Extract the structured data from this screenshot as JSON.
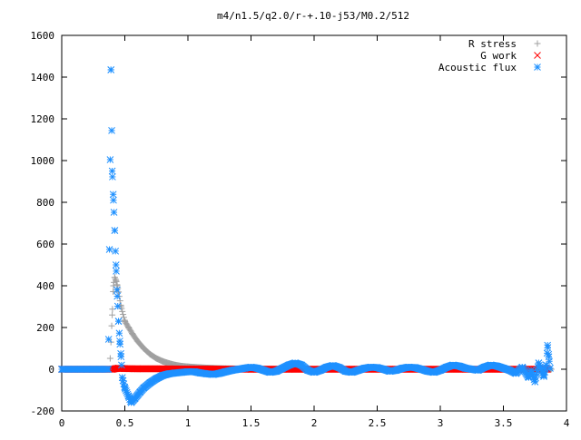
{
  "chart_data": {
    "type": "scatter",
    "title": "m4/n1.5/q2.0/r-+.10-j53/M0.2/512",
    "xlabel": "",
    "ylabel": "",
    "xlim": [
      0,
      4
    ],
    "ylim": [
      -200,
      1600
    ],
    "x_ticks": [
      0,
      0.5,
      1,
      1.5,
      2,
      2.5,
      3,
      3.5,
      4
    ],
    "x_tick_labels": [
      "0",
      "0.5",
      "1",
      "1.5",
      "2",
      "2.5",
      "3",
      "3.5",
      "4"
    ],
    "y_ticks": [
      -200,
      0,
      200,
      400,
      600,
      800,
      1000,
      1200,
      1400,
      1600
    ],
    "y_tick_labels": [
      "-200",
      "0",
      "200",
      "400",
      "600",
      "800",
      "1000",
      "1200",
      "1400",
      "1600"
    ],
    "grid": false,
    "legend_position": "top-right",
    "series": [
      {
        "name": "R stress",
        "marker": "plus",
        "color": "#a0a0a0",
        "x": [
          0.0,
          0.1,
          0.2,
          0.3,
          0.35,
          0.38,
          0.4,
          0.41,
          0.42,
          0.43,
          0.44,
          0.45,
          0.47,
          0.5,
          0.53,
          0.56,
          0.6,
          0.65,
          0.7,
          0.75,
          0.8,
          0.85,
          0.9,
          0.95,
          1.0,
          1.1,
          1.2,
          1.3,
          1.5,
          1.7,
          2.0,
          2.5,
          3.0,
          3.5,
          3.8,
          3.88
        ],
        "y": [
          0,
          0,
          0,
          0,
          0,
          0,
          260,
          400,
          440,
          425,
          400,
          370,
          300,
          230,
          200,
          170,
          135,
          100,
          72,
          52,
          38,
          28,
          20,
          15,
          12,
          8,
          5,
          3,
          2,
          1,
          0,
          0,
          0,
          0,
          0,
          0
        ]
      },
      {
        "name": "G work",
        "marker": "cross",
        "color": "#ff0000",
        "x": [
          0.0,
          0.2,
          0.4,
          0.45,
          0.5,
          0.6,
          0.8,
          1.0,
          1.2,
          1.5,
          1.8,
          2.0,
          2.3,
          2.6,
          2.9,
          3.2,
          3.5,
          3.7,
          3.85
        ],
        "y": [
          0,
          0,
          0,
          5,
          3,
          2,
          2,
          1,
          1,
          0,
          0,
          0,
          0,
          0,
          0,
          0,
          0,
          0,
          0
        ]
      },
      {
        "name": "Acoustic flux",
        "marker": "star",
        "color": "#1e90ff",
        "x": [
          0.0,
          0.1,
          0.2,
          0.3,
          0.37,
          0.39,
          0.4,
          0.41,
          0.42,
          0.43,
          0.44,
          0.45,
          0.46,
          0.47,
          0.48,
          0.5,
          0.53,
          0.55,
          0.58,
          0.62,
          0.65,
          0.7,
          0.75,
          0.8,
          0.85,
          0.9,
          0.95,
          1.0,
          1.05,
          1.1,
          1.15,
          1.2,
          1.25,
          1.3,
          1.35,
          1.4,
          1.45,
          1.5,
          1.55,
          1.6,
          1.65,
          1.7,
          1.75,
          1.8,
          1.85,
          1.9,
          1.95,
          2.0,
          2.05,
          2.1,
          2.15,
          2.2,
          2.25,
          2.3,
          2.35,
          2.4,
          2.45,
          2.5,
          2.55,
          2.6,
          2.65,
          2.7,
          2.75,
          2.8,
          2.85,
          2.9,
          2.95,
          3.0,
          3.05,
          3.1,
          3.15,
          3.2,
          3.25,
          3.3,
          3.35,
          3.4,
          3.45,
          3.5,
          3.55,
          3.6,
          3.65,
          3.7,
          3.72,
          3.75,
          3.78,
          3.8,
          3.82,
          3.84,
          3.85,
          3.86,
          3.87
        ],
        "y": [
          0,
          0,
          0,
          0,
          0,
          1435,
          950,
          810,
          665,
          500,
          350,
          230,
          135,
          60,
          -40,
          -90,
          -130,
          -160,
          -140,
          -110,
          -90,
          -65,
          -45,
          -30,
          -22,
          -18,
          -15,
          -12,
          -12,
          -18,
          -22,
          -25,
          -20,
          -12,
          -5,
          0,
          5,
          10,
          5,
          -5,
          -15,
          -10,
          5,
          20,
          30,
          20,
          -5,
          -15,
          -5,
          10,
          18,
          8,
          -10,
          -15,
          -5,
          5,
          10,
          8,
          0,
          -10,
          -5,
          5,
          10,
          8,
          0,
          -10,
          -15,
          -5,
          10,
          20,
          15,
          5,
          0,
          -5,
          10,
          20,
          15,
          5,
          -5,
          -20,
          10,
          -40,
          -5,
          -60,
          30,
          0,
          -35,
          20,
          115,
          60,
          5
        ]
      }
    ]
  }
}
